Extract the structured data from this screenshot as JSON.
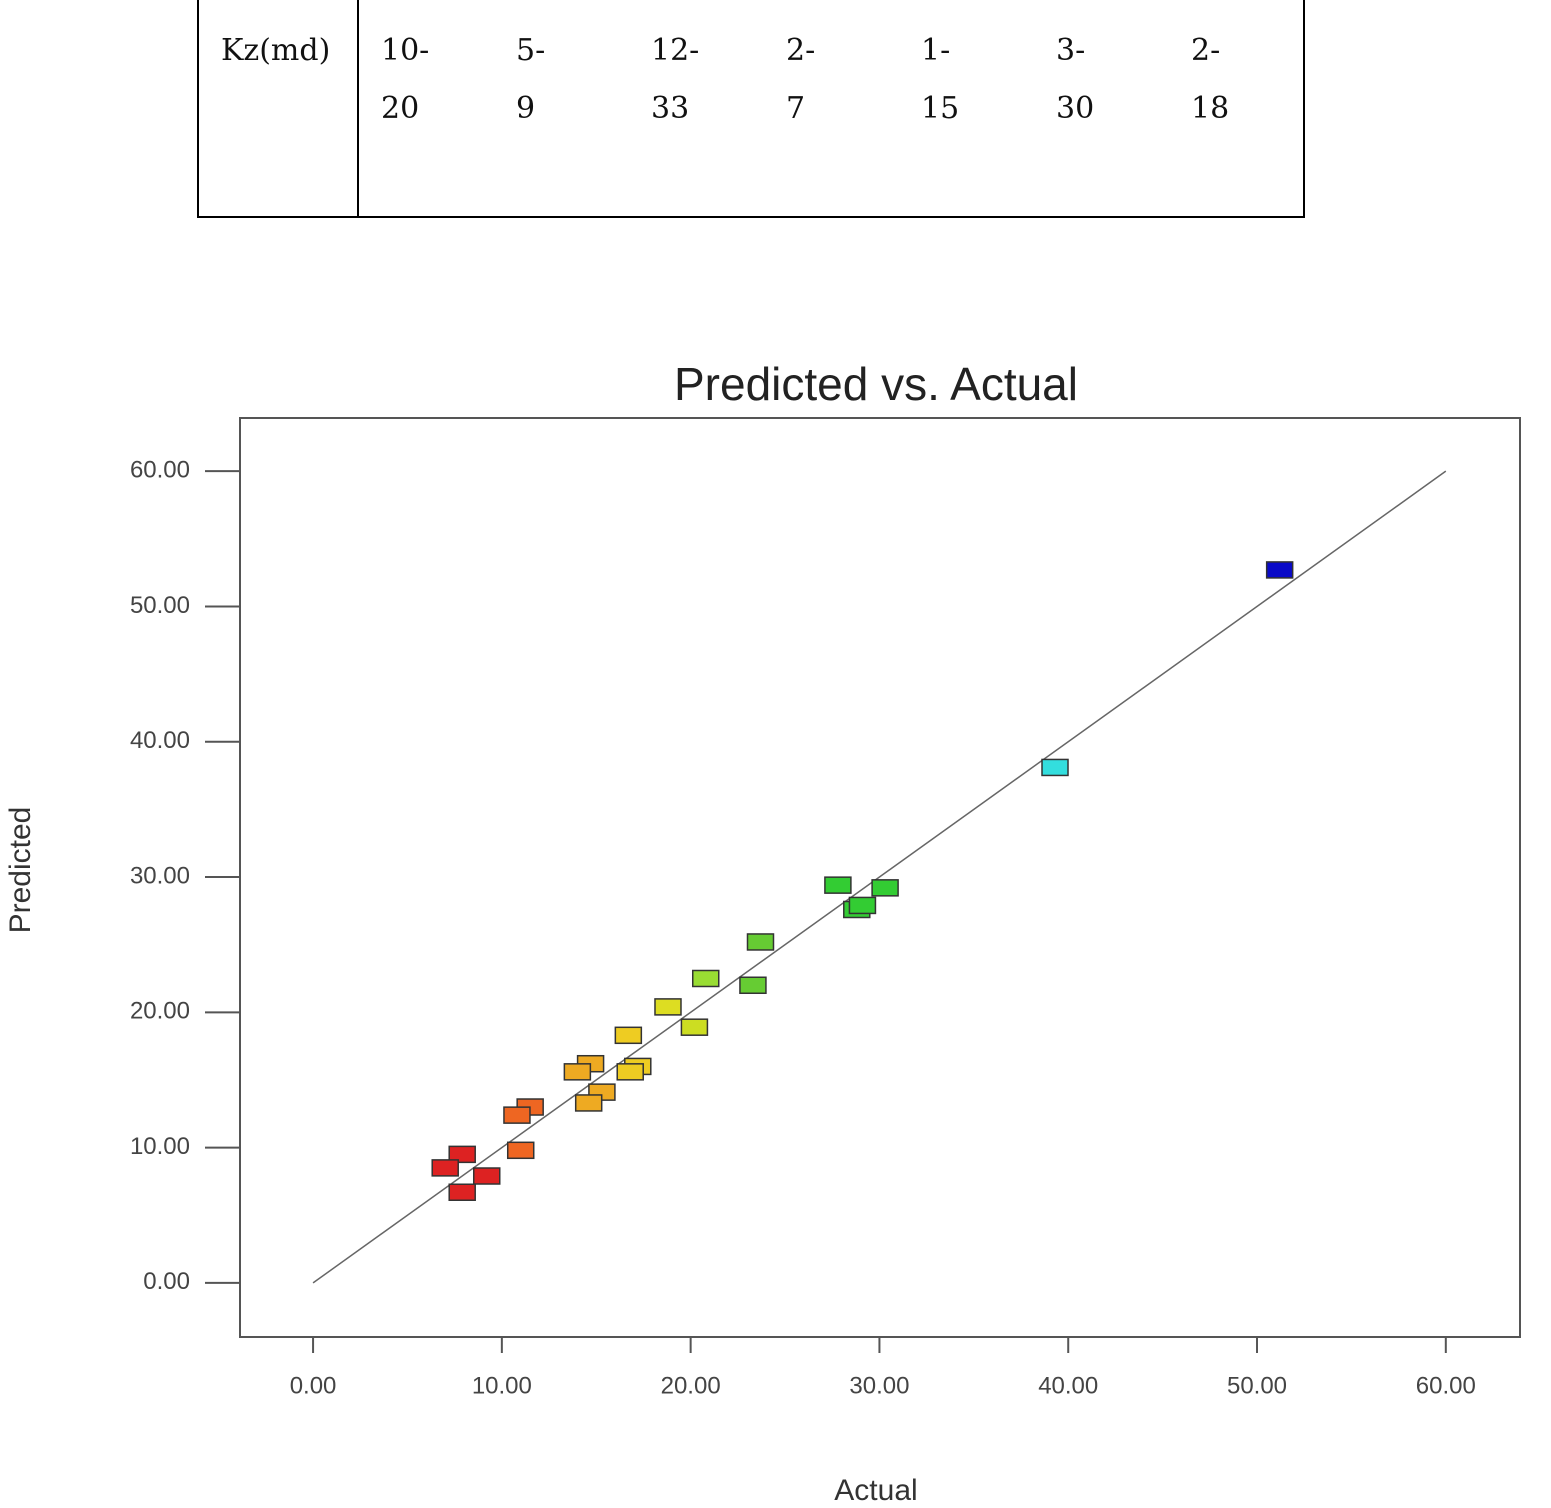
{
  "table": {
    "rows": [
      [
        [
          "Kz(md)"
        ],
        [
          "10-",
          "20"
        ],
        [
          "5-",
          "9"
        ],
        [
          "12-",
          "33"
        ],
        [
          "2-",
          "7"
        ],
        [
          "1-",
          "15"
        ],
        [
          "3-",
          "30"
        ],
        [
          "2-",
          "18"
        ]
      ]
    ]
  },
  "chart_data": {
    "type": "scatter",
    "title": "Predicted vs. Actual",
    "x_label": "Actual",
    "y_label": "Predicted",
    "x": [
      51.2,
      39.3,
      27.8,
      30.3,
      28.8,
      29.1,
      23.7,
      23.3,
      20.8,
      20.2,
      18.8,
      16.7,
      17.2,
      16.8,
      14.7,
      14.0,
      15.3,
      14.6,
      11.5,
      10.8,
      11.0,
      7.9,
      7.0,
      9.2,
      7.9
    ],
    "values": [
      52.7,
      38.1,
      29.4,
      29.2,
      27.6,
      27.9,
      25.2,
      22.0,
      22.5,
      18.9,
      20.4,
      18.3,
      16.0,
      15.6,
      16.2,
      15.6,
      14.1,
      13.3,
      13.0,
      12.4,
      9.8,
      9.5,
      8.5,
      7.9,
      6.7
    ],
    "colors": [
      "#0a0ac8",
      "#33dede",
      "#33cc33",
      "#33cc33",
      "#33cc33",
      "#33cc33",
      "#66cc33",
      "#66cc33",
      "#99dd33",
      "#ccdd22",
      "#dddd22",
      "#eecc22",
      "#eecc22",
      "#eecc22",
      "#eeaa22",
      "#eeaa22",
      "#eeaa22",
      "#eeaa22",
      "#ee6622",
      "#ee6622",
      "#ee6622",
      "#dd2222",
      "#dd2222",
      "#dd2222",
      "#dd2222"
    ],
    "xlim": [
      -3.87,
      63.93
    ],
    "ylim": [
      -4.0,
      63.93
    ],
    "xticks": [
      {
        "value": 0,
        "label": "0.00"
      },
      {
        "value": 10,
        "label": "10.00"
      },
      {
        "value": 20,
        "label": "20.00"
      },
      {
        "value": 30,
        "label": "30.00"
      },
      {
        "value": 40,
        "label": "40.00"
      },
      {
        "value": 50,
        "label": "50.00"
      },
      {
        "value": 60,
        "label": "60.00"
      }
    ],
    "yticks": [
      {
        "value": 0,
        "label": "0.00"
      },
      {
        "value": 10,
        "label": "10.00"
      },
      {
        "value": 20,
        "label": "20.00"
      },
      {
        "value": 30,
        "label": "30.00"
      },
      {
        "value": 40,
        "label": "40.00"
      },
      {
        "value": 50,
        "label": "50.00"
      },
      {
        "value": 60,
        "label": "60.00"
      }
    ],
    "identity_line": true
  }
}
